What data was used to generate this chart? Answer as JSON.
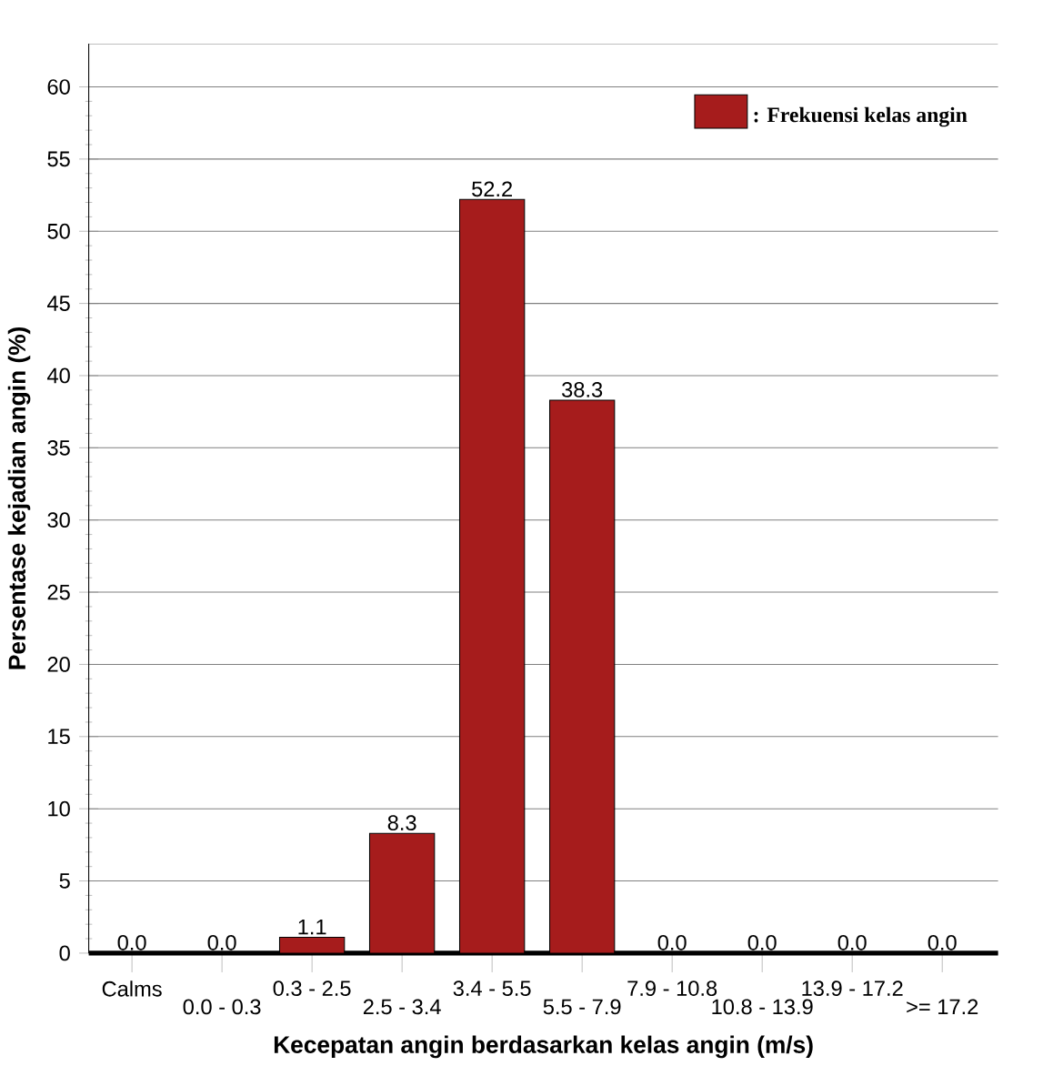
{
  "chart_data": {
    "type": "bar",
    "xlabel": "Kecepatan angin berdasarkan kelas angin (m/s)",
    "ylabel": "Persentase kejadian angin (%)",
    "categories": [
      "Calms",
      "0.0 - 0.3",
      "0.3 - 2.5",
      "2.5 - 3.4",
      "3.4 - 5.5",
      "5.5 - 7.9",
      "7.9 - 10.8",
      "10.8 - 13.9",
      "13.9 - 17.2",
      ">= 17.2"
    ],
    "series": [
      {
        "name": ": Frekuensi kelas angin",
        "color": "#a61c1c",
        "values": [
          0.0,
          0.0,
          1.1,
          8.3,
          52.2,
          38.3,
          0.0,
          0.0,
          0.0,
          0.0
        ],
        "value_labels": [
          "0.0",
          "0.0",
          "1.1",
          "8.3",
          "52.2",
          "38.3",
          "0.0",
          "0.0",
          "0.0",
          "0.0"
        ]
      }
    ],
    "ylim": [
      0,
      63
    ],
    "yticks": [
      0,
      5,
      10,
      15,
      20,
      25,
      30,
      35,
      40,
      45,
      50,
      55,
      60
    ],
    "grid": "y",
    "legend": "top right"
  }
}
